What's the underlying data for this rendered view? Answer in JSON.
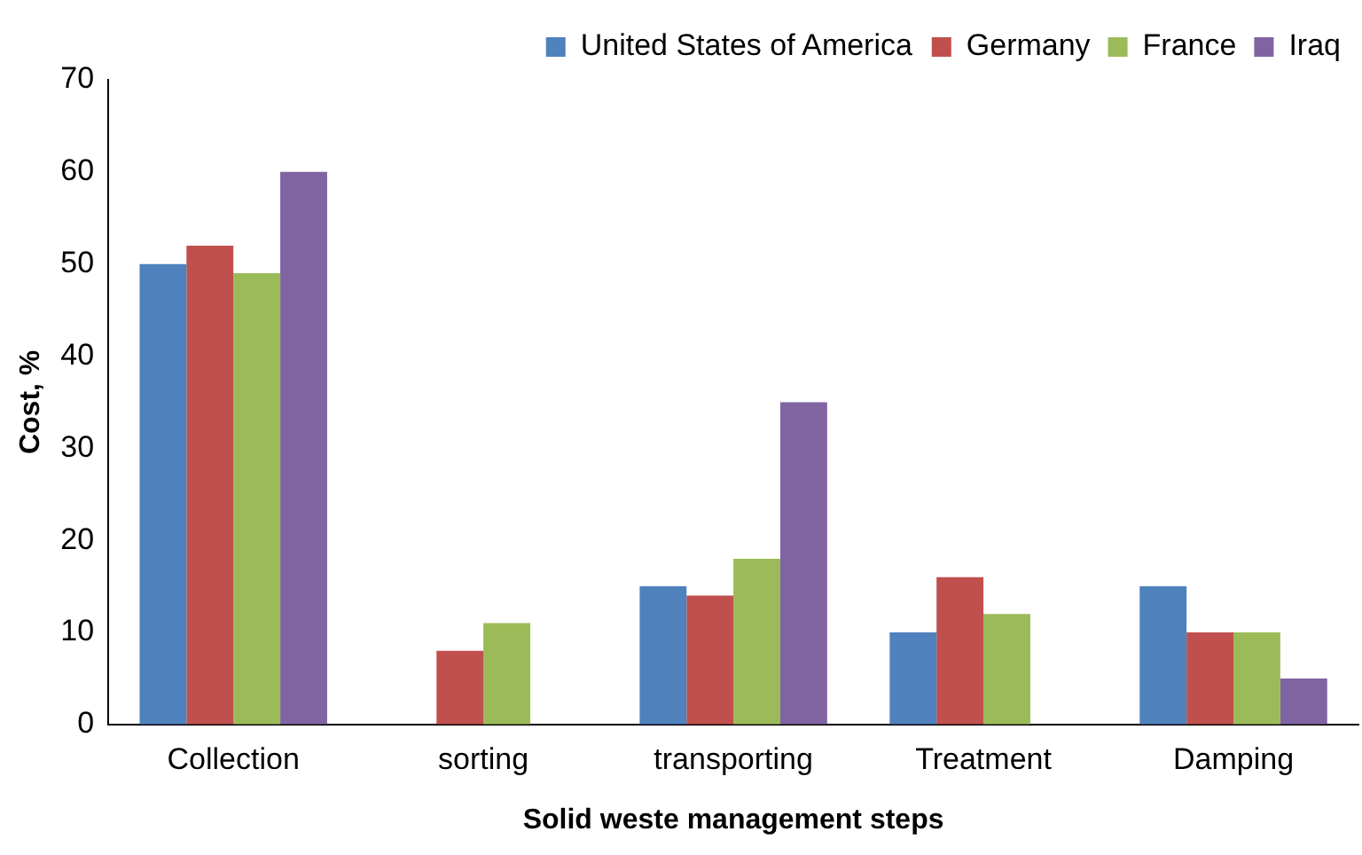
{
  "chart_data": {
    "type": "bar",
    "xlabel": "Solid weste management steps",
    "ylabel": "Cost, %",
    "categories": [
      "Collection",
      "sorting",
      "transporting",
      "Treatment",
      "Damping"
    ],
    "series": [
      {
        "name": "United States of America",
        "color": "#4f81bd",
        "values": [
          50,
          null,
          15,
          10,
          15
        ]
      },
      {
        "name": "Germany",
        "color": "#c0504d",
        "values": [
          52,
          8,
          14,
          16,
          10
        ]
      },
      {
        "name": "France",
        "color": "#9bbb59",
        "values": [
          49,
          11,
          18,
          12,
          10
        ]
      },
      {
        "name": "Iraq",
        "color": "#8064a2",
        "values": [
          60,
          null,
          35,
          null,
          5
        ]
      }
    ],
    "ylim": [
      0,
      70
    ],
    "yticks": [
      0,
      10,
      20,
      30,
      40,
      50,
      60,
      70
    ],
    "grid": false,
    "legend": "top right"
  }
}
